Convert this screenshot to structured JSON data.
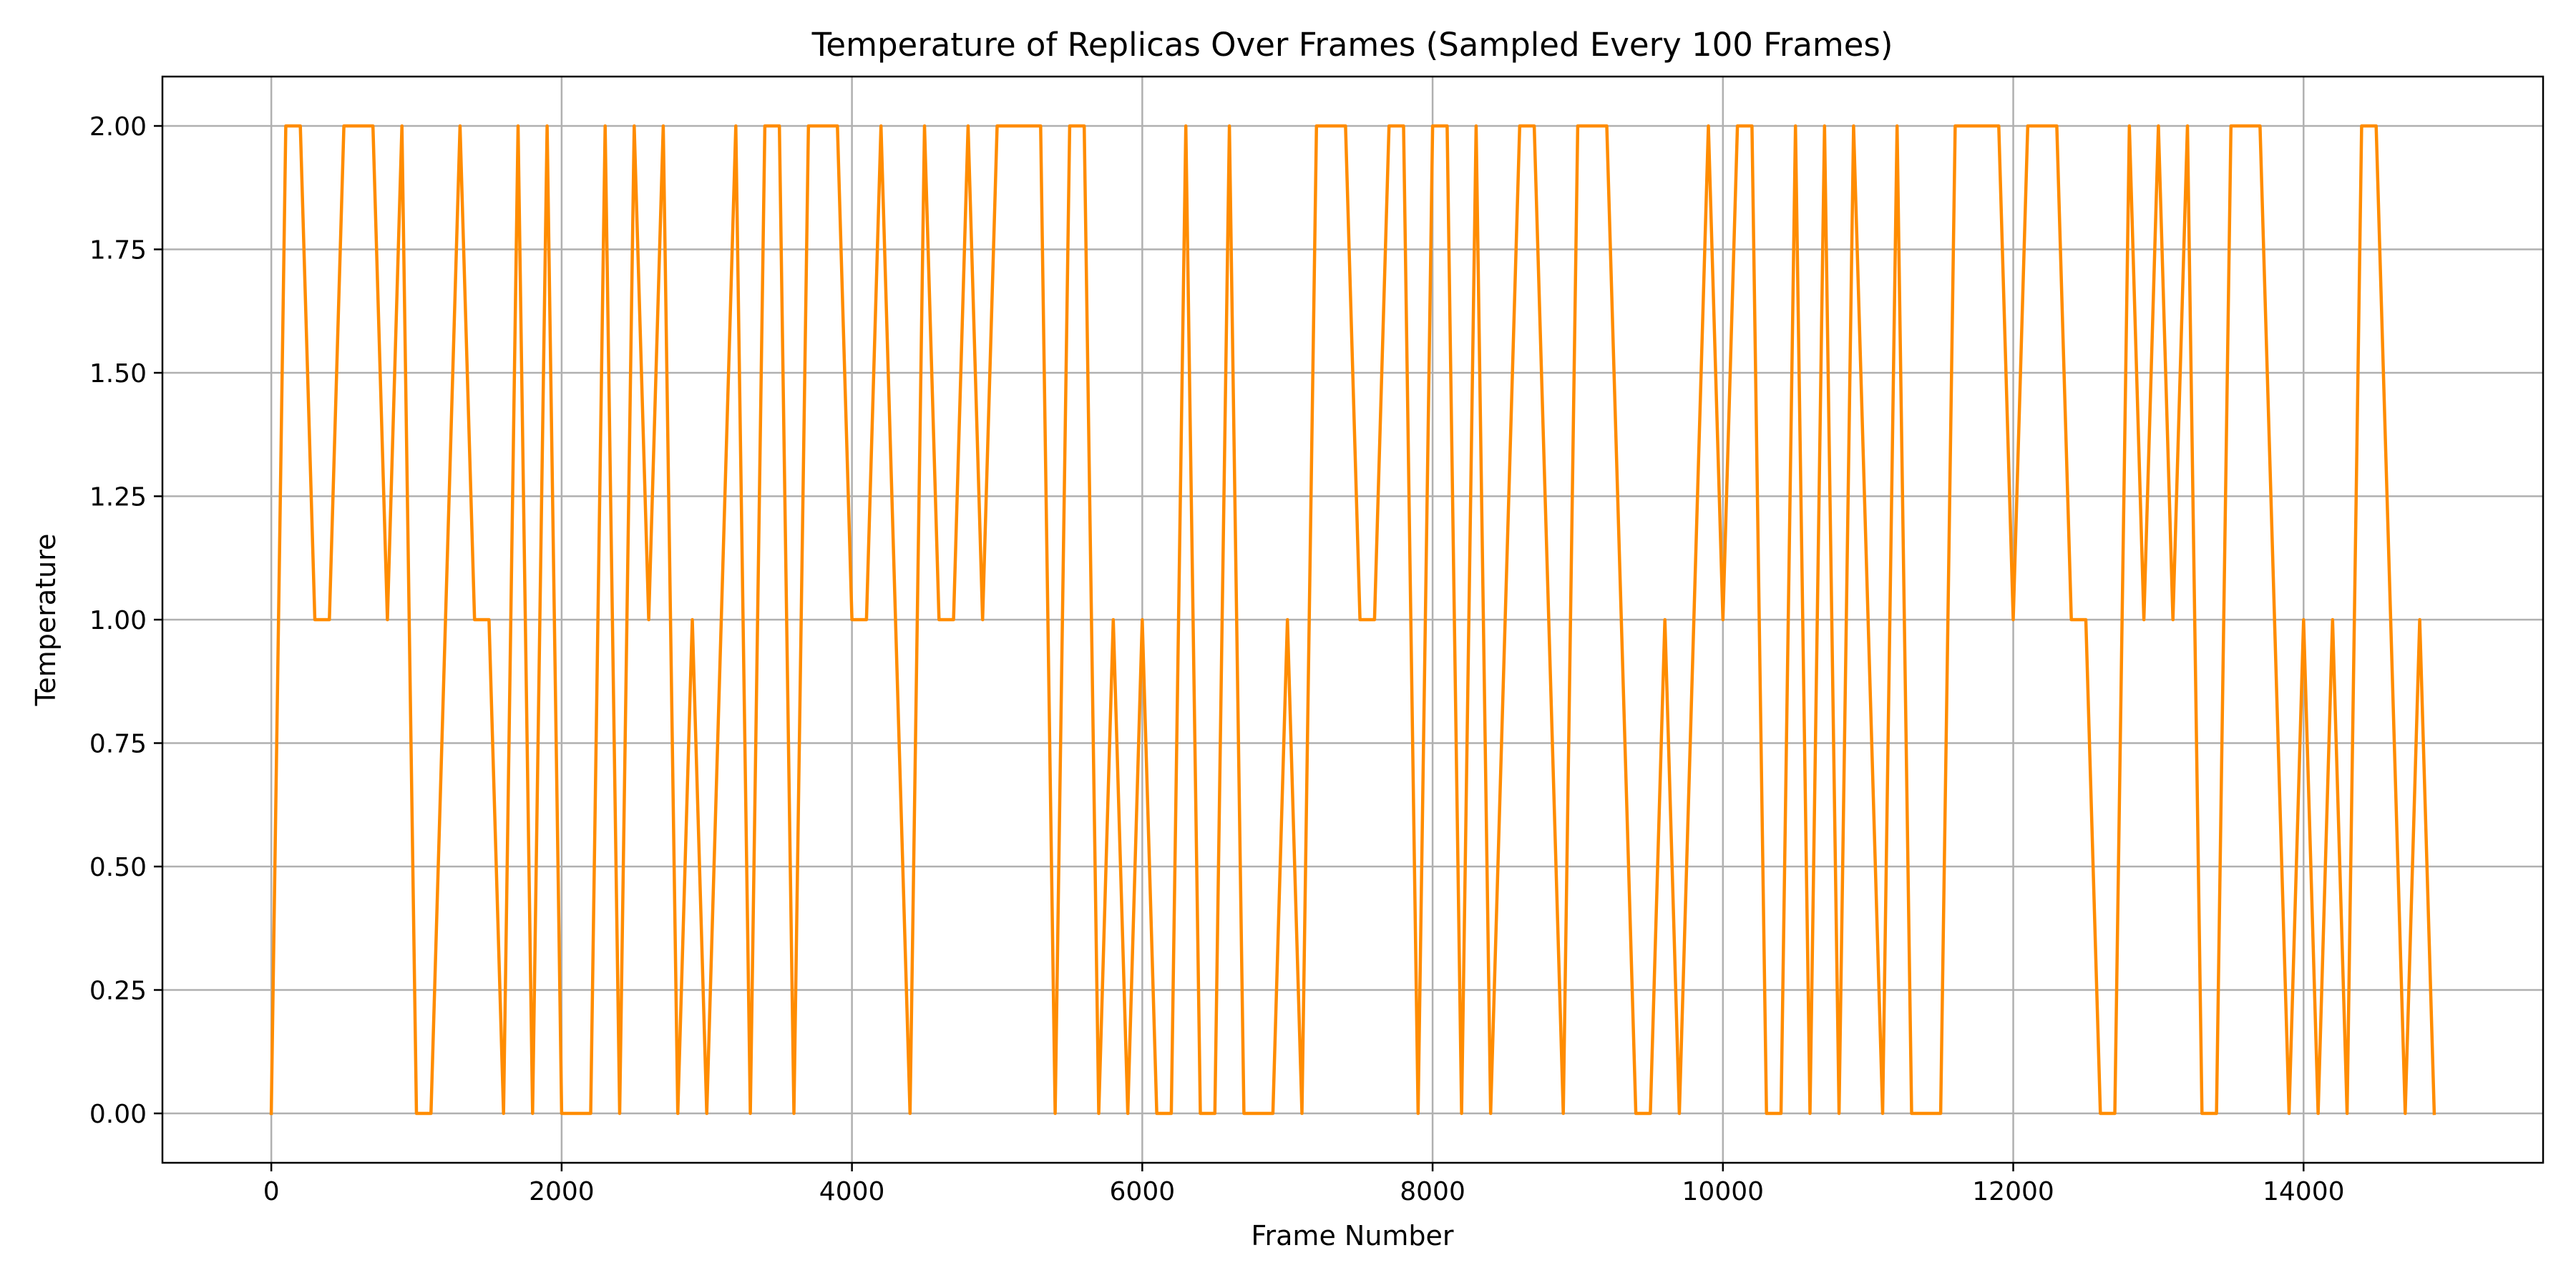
{
  "chart_data": {
    "type": "line",
    "title": "Temperature of Replicas Over Frames (Sampled Every 100 Frames)",
    "xlabel": "Frame Number",
    "ylabel": "Temperature",
    "xlim": [
      -750,
      15650
    ],
    "ylim": [
      -0.1,
      2.1
    ],
    "xticks": [
      0,
      2000,
      4000,
      6000,
      8000,
      10000,
      12000,
      14000
    ],
    "yticks": [
      "0.00",
      "0.25",
      "0.50",
      "0.75",
      "1.00",
      "1.25",
      "1.50",
      "1.75",
      "2.00"
    ],
    "grid": true,
    "series": [
      {
        "color": "#ff8c00",
        "x_start": 0,
        "x_step": 100,
        "values": [
          0,
          2,
          2,
          1,
          1,
          2,
          2,
          2,
          1,
          2,
          0,
          0,
          1,
          2,
          1,
          1,
          0,
          2,
          0,
          2,
          0,
          0,
          0,
          2,
          0,
          2,
          1,
          2,
          0,
          1,
          0,
          1,
          2,
          0,
          2,
          2,
          0,
          2,
          2,
          2,
          1,
          1,
          2,
          1,
          0,
          2,
          1,
          1,
          2,
          1,
          2,
          2,
          2,
          2,
          0,
          2,
          2,
          0,
          1,
          0,
          1,
          0,
          0,
          2,
          0,
          0,
          2,
          0,
          0,
          0,
          1,
          0,
          2,
          2,
          2,
          1,
          1,
          2,
          2,
          0,
          2,
          2,
          0,
          2,
          0,
          1,
          2,
          2,
          1,
          0,
          2,
          2,
          2,
          1,
          0,
          0,
          1,
          0,
          1,
          2,
          1,
          2,
          2,
          0,
          0,
          2,
          0,
          2,
          0,
          2,
          1,
          0,
          2,
          0,
          0,
          0,
          2,
          2,
          2,
          2,
          1,
          2,
          2,
          2,
          1,
          1,
          0,
          0,
          2,
          1,
          2,
          1,
          2,
          0,
          0,
          2,
          2,
          2,
          1,
          0,
          1,
          0,
          1,
          0,
          2,
          2,
          1,
          0,
          1,
          0
        ]
      }
    ]
  }
}
